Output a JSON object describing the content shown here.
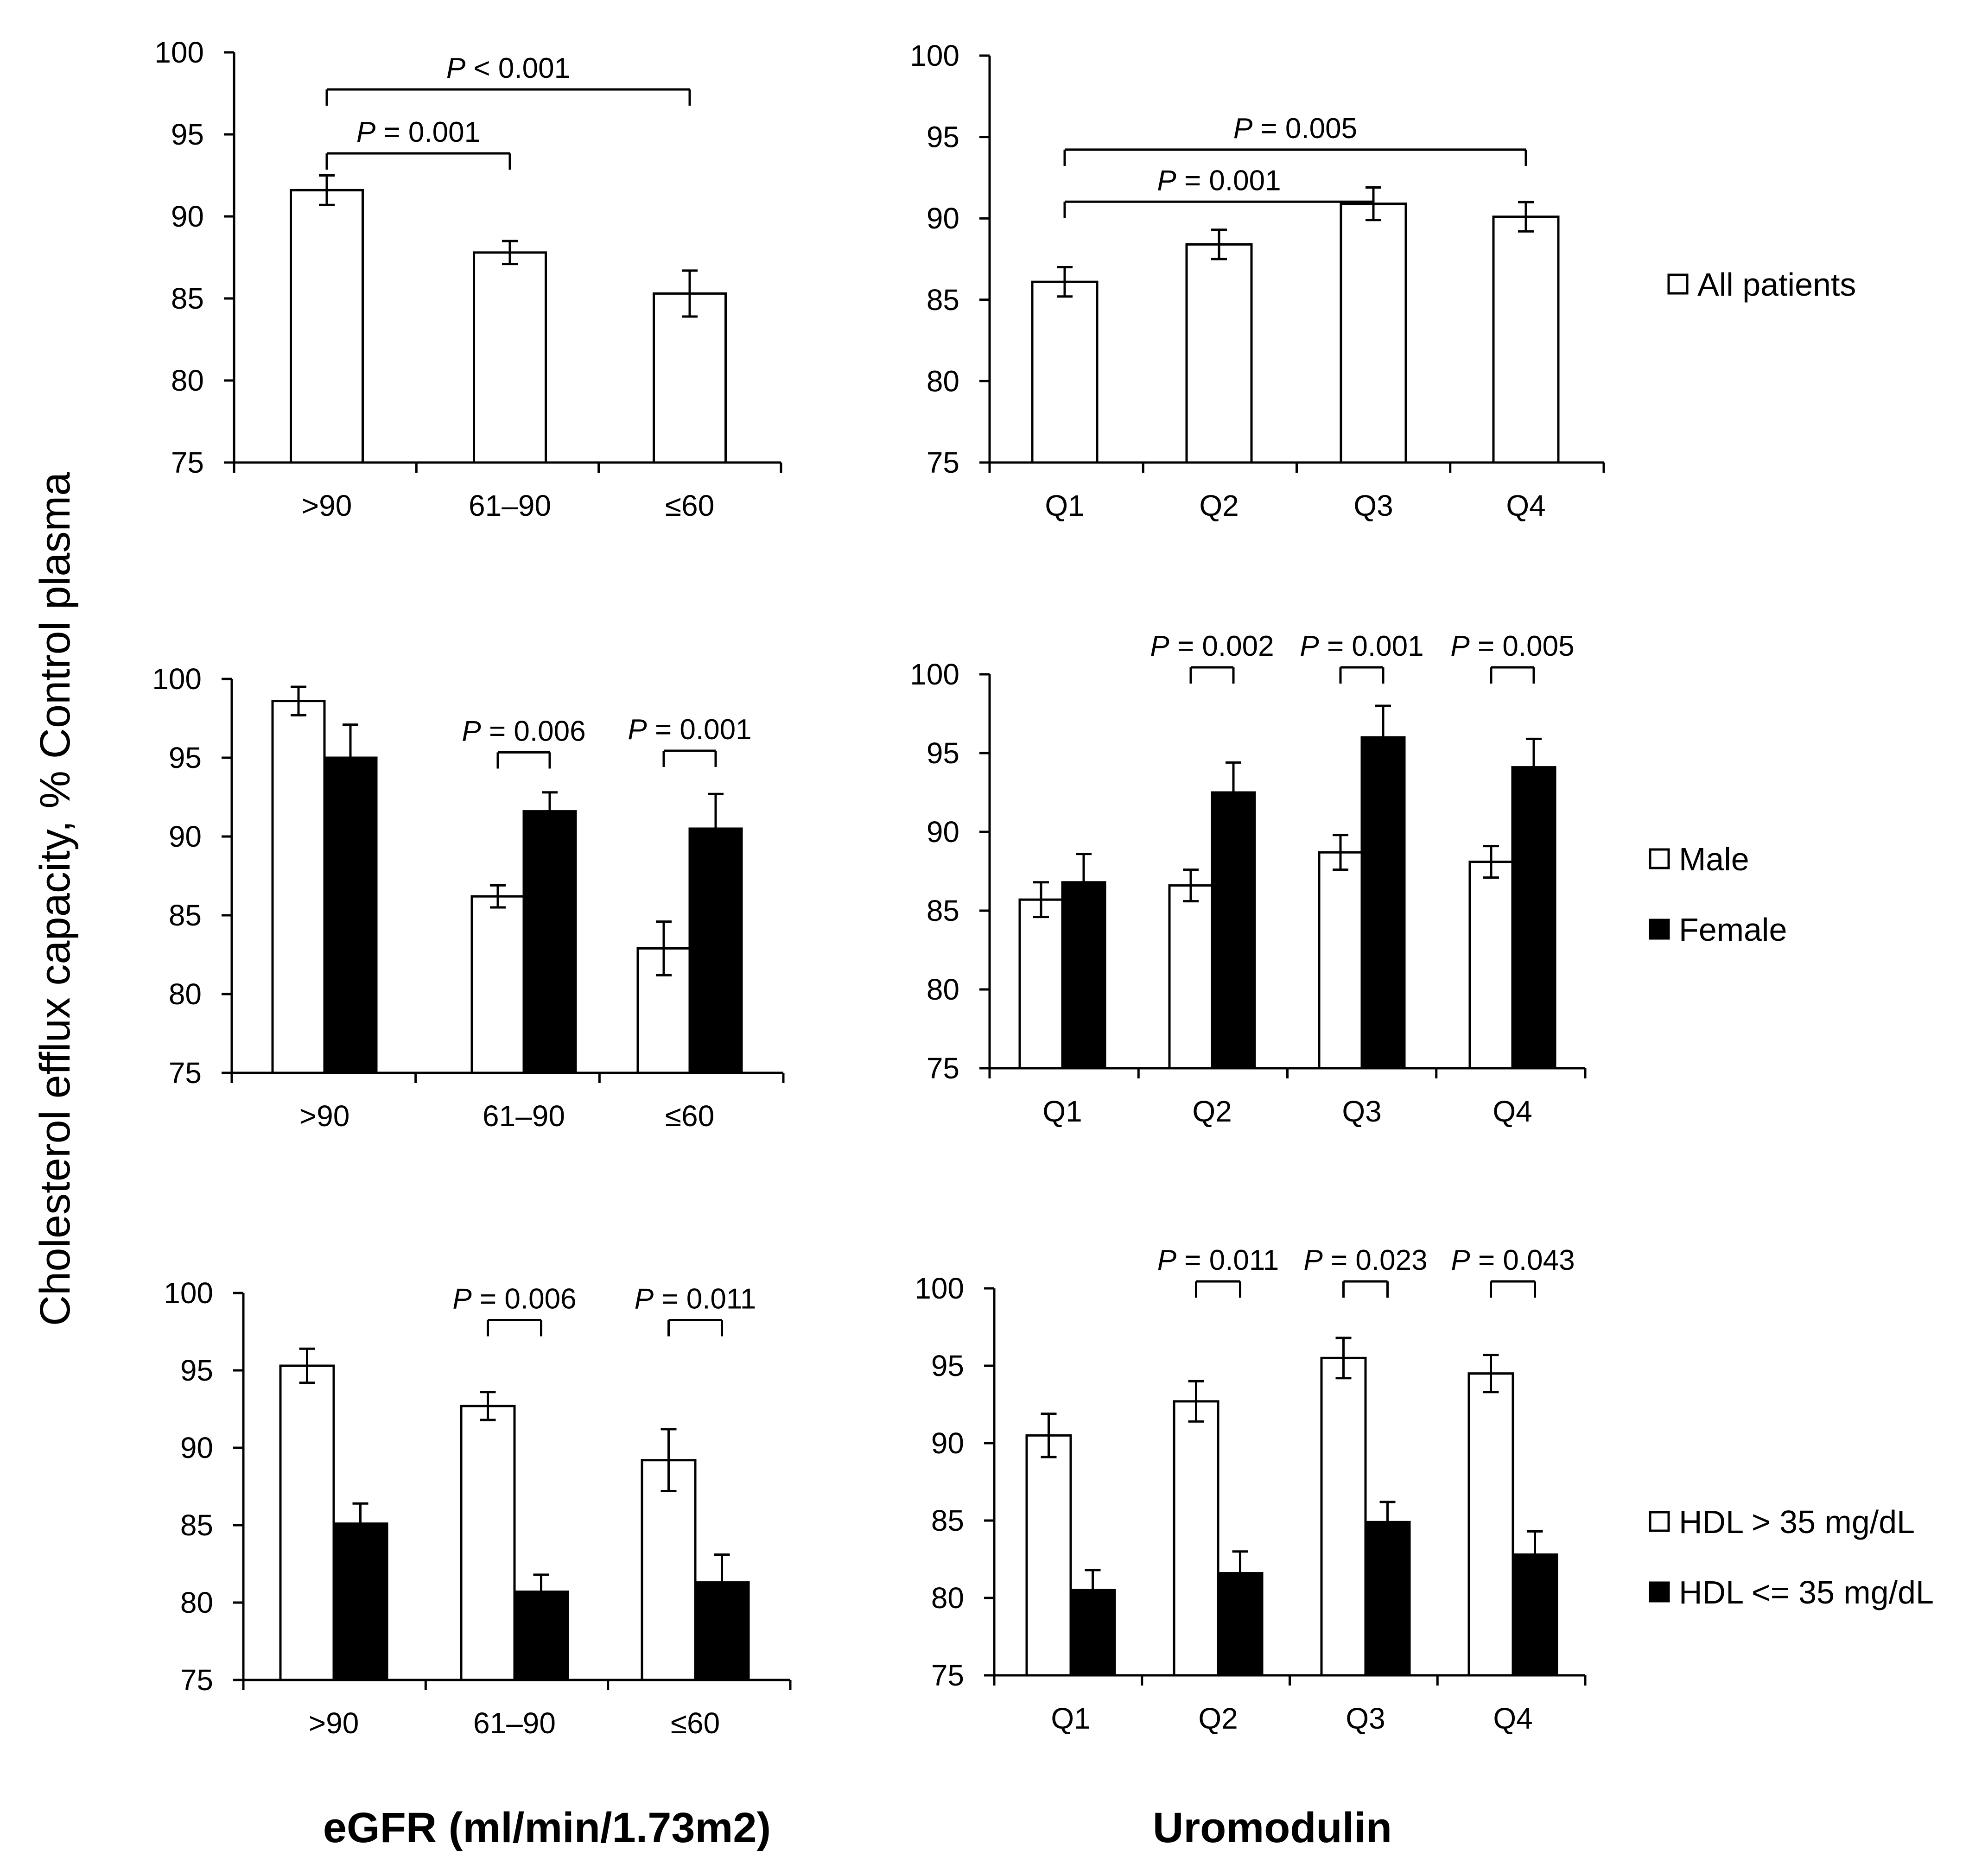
{
  "figure": {
    "ylabel": "Cholesterol efflux capacity, % Control plasma",
    "xlabel_left": "eGFR (ml/min/1.73m2)",
    "xlabel_right": "Uromodulin"
  },
  "legends": [
    {
      "items": [
        {
          "label": "All patients",
          "fill": "#ffffff"
        }
      ]
    },
    {
      "items": [
        {
          "label": "Male",
          "fill": "#ffffff"
        },
        {
          "label": "Female",
          "fill": "#000000"
        }
      ]
    },
    {
      "items": [
        {
          "label": "HDL > 35 mg/dL",
          "fill": "#ffffff"
        },
        {
          "label": "HDL <= 35 mg/dL",
          "fill": "#000000"
        }
      ]
    }
  ],
  "chart_data": [
    {
      "type": "bar",
      "id": "egfr-all",
      "categories": [
        ">90",
        "61–90",
        "≤60"
      ],
      "series": [
        {
          "name": "All patients",
          "fill": "#ffffff",
          "values": [
            91.6,
            87.8,
            85.3
          ],
          "errors": [
            0.9,
            0.7,
            1.4
          ]
        }
      ],
      "ylim": [
        75,
        100
      ],
      "yticks": [
        75,
        80,
        85,
        90,
        95,
        100
      ],
      "comparisons": [
        {
          "from": 0,
          "to": 2,
          "level": 100,
          "label": "P < 0.001"
        },
        {
          "from": 0,
          "to": 1,
          "level": 96.1,
          "label": "P = 0.001"
        }
      ]
    },
    {
      "type": "bar",
      "id": "uromodulin-all",
      "categories": [
        "Q1",
        "Q2",
        "Q3",
        "Q4"
      ],
      "series": [
        {
          "name": "All patients",
          "fill": "#ffffff",
          "values": [
            86.1,
            88.4,
            90.9,
            90.1
          ],
          "errors": [
            0.9,
            0.9,
            1.0,
            0.9
          ]
        }
      ],
      "ylim": [
        75,
        100
      ],
      "yticks": [
        75,
        80,
        85,
        90,
        95,
        100
      ],
      "comparisons": [
        {
          "from": 0,
          "to": 3,
          "level": 96.5,
          "label": "P = 0.005"
        },
        {
          "from": 0,
          "to": 2,
          "level": 93.3,
          "label": "P = 0.001"
        }
      ]
    },
    {
      "type": "bar",
      "id": "egfr-sex",
      "categories": [
        ">90",
        "61–90",
        "≤60"
      ],
      "series": [
        {
          "name": "Male",
          "fill": "#ffffff",
          "values": [
            98.6,
            86.2,
            82.9
          ],
          "errors": [
            0.9,
            0.7,
            1.7
          ]
        },
        {
          "name": "Female",
          "fill": "#000000",
          "values": [
            95.0,
            91.6,
            90.5
          ],
          "errors": [
            2.1,
            1.2,
            2.2
          ]
        }
      ],
      "ylim": [
        75,
        100
      ],
      "yticks": [
        75,
        80,
        85,
        90,
        95,
        100
      ],
      "comparisons": [
        {
          "group": 1,
          "level": 94.9,
          "label": "P = 0.006"
        },
        {
          "group": 2,
          "level": 95.0,
          "label": "P = 0.001"
        }
      ]
    },
    {
      "type": "bar",
      "id": "uromodulin-sex",
      "categories": [
        "Q1",
        "Q2",
        "Q3",
        "Q4"
      ],
      "series": [
        {
          "name": "Male",
          "fill": "#ffffff",
          "values": [
            85.7,
            86.6,
            88.7,
            88.1
          ],
          "errors": [
            1.1,
            1.0,
            1.1,
            1.0
          ]
        },
        {
          "name": "Female",
          "fill": "#000000",
          "values": [
            86.8,
            92.5,
            96.0,
            94.1
          ],
          "errors": [
            1.8,
            1.9,
            2.0,
            1.8
          ]
        }
      ],
      "ylim": [
        75,
        100
      ],
      "yticks": [
        75,
        80,
        85,
        90,
        95,
        100
      ],
      "comparisons": [
        {
          "group": 1,
          "level": 100,
          "label": "P = 0.002"
        },
        {
          "group": 2,
          "level": 100,
          "label": "P = 0.001"
        },
        {
          "group": 3,
          "level": 100,
          "label": "P = 0.005"
        }
      ]
    },
    {
      "type": "bar",
      "id": "egfr-hdl",
      "categories": [
        ">90",
        "61–90",
        "≤60"
      ],
      "series": [
        {
          "name": "HDL > 35 mg/dL",
          "fill": "#ffffff",
          "values": [
            95.3,
            92.7,
            89.2
          ],
          "errors": [
            1.1,
            0.9,
            2.0
          ]
        },
        {
          "name": "HDL <= 35 mg/dL",
          "fill": "#000000",
          "values": [
            85.1,
            80.7,
            81.3
          ],
          "errors": [
            1.3,
            1.1,
            1.8
          ]
        }
      ],
      "ylim": [
        75,
        100
      ],
      "yticks": [
        75,
        80,
        85,
        90,
        95,
        100
      ],
      "comparisons": [
        {
          "group": 1,
          "level": 97.8,
          "label": "P = 0.006"
        },
        {
          "group": 2,
          "level": 97.8,
          "label": "P = 0.011"
        }
      ]
    },
    {
      "type": "bar",
      "id": "uromodulin-hdl",
      "categories": [
        "Q1",
        "Q2",
        "Q3",
        "Q4"
      ],
      "series": [
        {
          "name": "HDL > 35 mg/dL",
          "fill": "#ffffff",
          "values": [
            90.5,
            92.7,
            95.5,
            94.5
          ],
          "errors": [
            1.4,
            1.3,
            1.3,
            1.2
          ]
        },
        {
          "name": "HDL <= 35 mg/dL",
          "fill": "#000000",
          "values": [
            80.5,
            81.6,
            84.9,
            82.8
          ],
          "errors": [
            1.3,
            1.4,
            1.3,
            1.5
          ]
        }
      ],
      "ylim": [
        75,
        100
      ],
      "yticks": [
        75,
        80,
        85,
        90,
        95,
        100
      ],
      "comparisons": [
        {
          "group": 1,
          "level": 100,
          "label": "P = 0.011"
        },
        {
          "group": 2,
          "level": 100,
          "label": "P = 0.023"
        },
        {
          "group": 3,
          "level": 100,
          "label": "P = 0.043"
        }
      ]
    }
  ]
}
